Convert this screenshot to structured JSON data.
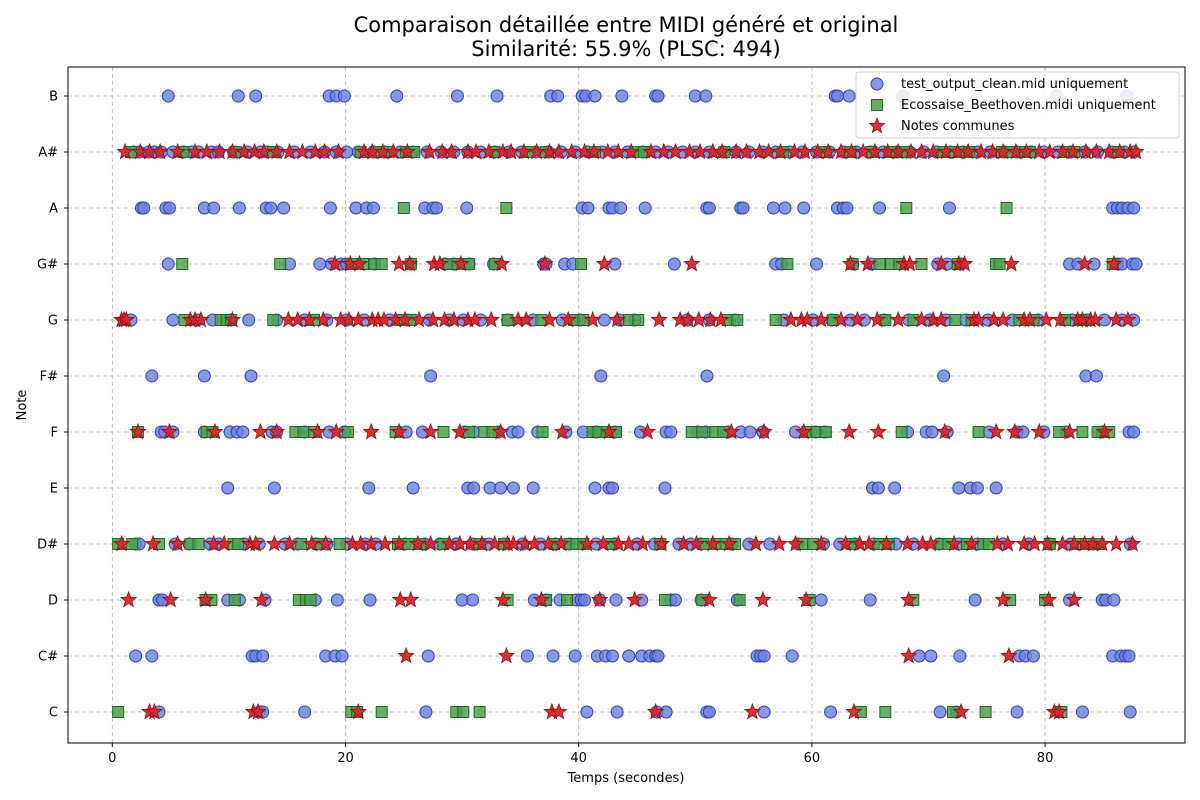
{
  "chart_data": {
    "type": "scatter",
    "title": "Comparaison détaillée entre MIDI généré et original",
    "subtitle": "Similarité: 55.9% (PLSC: 494)",
    "xlabel": "Temps (secondes)",
    "ylabel": "Note",
    "xlim": [
      -3.8,
      92
    ],
    "x_ticks": [
      0,
      20,
      40,
      60,
      80
    ],
    "y_categories": [
      "C",
      "C#",
      "D",
      "D#",
      "E",
      "F",
      "F#",
      "G",
      "G#",
      "A",
      "A#",
      "B"
    ],
    "grid": true,
    "legend_position": "top-right",
    "colors": {
      "test_only": "#6b7fe0",
      "test_only_edge": "#2f3fa8",
      "original_only": "#4ea04e",
      "original_only_edge": "#1f6b1f",
      "common": "#d8262c",
      "common_edge": "#8a1010"
    },
    "series": [
      {
        "name": "test_output_clean.mid uniquement",
        "marker": "circle",
        "points": {
          "B": [
            4.8,
            10.8,
            12.3,
            18.6,
            19.2,
            19.9,
            24.4,
            29.6,
            33,
            37.6,
            38.2,
            40.3,
            40.6,
            41.4,
            43.7,
            46.6,
            46.8,
            50,
            50.9,
            62,
            62.2,
            63.2,
            67.8,
            81,
            87
          ],
          "A#": [
            1.8,
            2.3,
            3.1,
            3.6,
            4.2,
            5.2,
            6.1,
            6.8,
            7.4,
            8.5,
            9.1,
            10.4,
            11.6,
            12.7,
            13.3,
            14.2,
            15.6,
            17,
            18.2,
            19.2,
            20.1,
            21.1,
            22.4,
            23.3,
            24.7,
            25.8,
            27,
            28.2,
            29.3,
            30.5,
            31.6,
            32.8,
            34,
            35.1,
            36.3,
            37.4,
            38.5,
            39.7,
            40.8,
            42,
            43.1,
            44.2,
            45.5,
            46.6,
            47.7,
            48.9,
            50,
            51.2,
            52.4,
            53.5,
            54.6,
            55.8,
            56.9,
            58.1,
            59.2,
            60.4,
            61.5,
            62.7,
            63.8,
            65,
            66.1,
            67.3,
            68.4,
            69.6,
            70.7,
            71.9,
            73,
            74.2,
            75.3,
            76.5,
            77.6,
            78.8,
            79.9,
            81.1,
            82.2,
            83.4,
            84.5,
            85.7,
            86.8,
            87.6
          ],
          "A": [
            2.5,
            2.7,
            4.6,
            4.9,
            7.9,
            8.7,
            10.9,
            13.2,
            13.6,
            14.7,
            18.7,
            20.9,
            21.8,
            22.4,
            26.8,
            27.5,
            27.8,
            30.4,
            40.3,
            40.8,
            42.6,
            42.9,
            43.6,
            45.7,
            51,
            51.2,
            53.9,
            54.1,
            56.7,
            57.7,
            59.3,
            62.2,
            62.7,
            63,
            65.8,
            71.8,
            85.8,
            86.2,
            86.6,
            87.1,
            87.6
          ],
          "G#": [
            4.8,
            15.2,
            17.8,
            18.8,
            19.6,
            20.1,
            22.5,
            25.6,
            28.5,
            29.3,
            30.6,
            32.7,
            37,
            37.2,
            38.8,
            39.5,
            43.1,
            48.2,
            56.9,
            57.4,
            60.4,
            63.5,
            65.1,
            70.8,
            71.6,
            72.8,
            82.1,
            82.8,
            84.2,
            86.2,
            86.6,
            87.5,
            87.8
          ],
          "G": [
            1.6,
            5.2,
            7.3,
            8.6,
            10.2,
            11.7,
            14.1,
            16.5,
            18.4,
            20.1,
            21.6,
            23.8,
            25.3,
            27.2,
            28.9,
            30.1,
            31.6,
            33.9,
            36.1,
            38.6,
            40.1,
            42.2,
            43.5,
            44.8,
            49.3,
            51.2,
            53.4,
            57.6,
            60.1,
            61.7,
            63.3,
            64.5,
            66.2,
            68.3,
            70.1,
            71.5,
            73.2,
            75.1,
            77.2,
            79.4,
            82.3,
            83.6,
            85.1,
            86.6,
            87.6
          ],
          "F#": [
            3.4,
            7.9,
            11.9,
            27.3,
            41.9,
            51,
            71.3,
            83.5,
            84.4
          ],
          "F": [
            4.2,
            4.5,
            5.2,
            7.9,
            10.1,
            10.7,
            11.2,
            13.7,
            14.1,
            16.5,
            18.6,
            19.9,
            25.2,
            26.6,
            30.2,
            31,
            33.1,
            34.3,
            34.8,
            36.5,
            38.9,
            40.4,
            41.5,
            43.1,
            45.3,
            47.5,
            47.9,
            50.2,
            50.9,
            52.8,
            53.9,
            54.7,
            55.8,
            58.6,
            60.3,
            61.1,
            68.2,
            69.8,
            70.3,
            71.6,
            75.2,
            77.6,
            78.1,
            79.9,
            81.8,
            84.9,
            87.2,
            87.6
          ],
          "E": [
            9.9,
            13.9,
            22,
            25.8,
            30.5,
            31,
            32.4,
            33.3,
            34.4,
            36.1,
            41.4,
            42.6,
            42.9,
            47.4,
            65.2,
            65.7,
            67.1,
            72.6,
            73.6,
            74.2,
            75.8
          ],
          "D#": [
            2,
            2.3,
            5.4,
            6.6,
            8.4,
            9.1,
            11.3,
            12.6,
            14.8,
            15.9,
            17.5,
            18.4,
            20.1,
            21.7,
            22.6,
            25.1,
            26.8,
            28.1,
            29.5,
            30.9,
            32.3,
            33.6,
            35.2,
            36.7,
            38,
            39.2,
            41.5,
            43.1,
            45,
            46.5,
            48.6,
            49.6,
            50.5,
            53.1,
            54.6,
            56.4,
            58.8,
            61,
            62.4,
            63.7,
            65.3,
            67.2,
            68.7,
            70.9,
            72.6,
            74.2,
            76.4,
            78.6,
            80.4,
            82.2,
            84.1,
            87.3
          ],
          "D": [
            4,
            4.3,
            9.9,
            10.9,
            13.1,
            17.4,
            19.3,
            22.1,
            30,
            30.9,
            36.2,
            37.2,
            38.4,
            39.8,
            40.2,
            40.5,
            41.8,
            43.2,
            45.4,
            47.9,
            48.3,
            50.5,
            53.6,
            60.8,
            65,
            74,
            82.1,
            84.9,
            85.2,
            85.9
          ],
          "C#": [
            2,
            3.4,
            12,
            12.3,
            12.9,
            18.3,
            19.1,
            19.7,
            27.1,
            35.6,
            37.8,
            39.7,
            41.6,
            42.3,
            42.9,
            44.3,
            45.4,
            46.1,
            46.6,
            46.8,
            55.3,
            55.6,
            55.9,
            58.3,
            69.2,
            70.2,
            72.7,
            77.8,
            78.3,
            79,
            85.8,
            86.5,
            86.9,
            87.2
          ],
          "C": [
            4,
            12.6,
            12.9,
            16.5,
            26.9,
            40.7,
            43.3,
            46.7,
            47.5,
            51,
            51.2,
            55.9,
            61.6,
            71,
            72.4,
            77.6,
            83.2,
            87.3
          ]
        }
      },
      {
        "name": "Ecossaise_Beethoven.midi uniquement",
        "marker": "square",
        "points": {
          "A#": [
            1.6,
            6.1,
            10.6,
            13.8,
            21.3,
            22.6,
            23.7,
            25.2,
            25.9,
            32.8,
            35.7,
            37.2,
            41.4,
            44.9,
            45.6,
            52.5,
            57.5,
            61.1,
            63.3,
            65.1,
            66.7,
            67.7,
            68.1,
            71.3,
            72.1,
            72.9,
            73.5,
            76.3,
            77.1,
            78.3,
            78.7,
            81.8,
            82.5,
            86.3
          ],
          "A": [
            25,
            33.8,
            68.1,
            76.7
          ],
          "G#": [
            6,
            14.4,
            20.5,
            21.5,
            22.5,
            23.1,
            25.6,
            28.8,
            29.6,
            30.6,
            32.8,
            40.2,
            57.9,
            63.5,
            65.8,
            66.8,
            67.5,
            69.4,
            72.5,
            75.8,
            76.1,
            85.8
          ],
          "G": [
            6.2,
            9.3,
            9.8,
            10.2,
            13.8,
            17.3,
            24.7,
            25.6,
            33.9,
            36.8,
            39.6,
            40.4,
            44.3,
            45.1,
            52.8,
            53.6,
            56.9,
            61.8,
            66.3,
            68.7,
            72.3,
            73.7,
            77.8,
            79,
            81.7,
            83.1
          ],
          "F": [
            2.2,
            8.1,
            8.6,
            15.7,
            16.4,
            17.3,
            20.2,
            24.3,
            28.4,
            30.6,
            31.9,
            32.6,
            36.9,
            41.2,
            41.7,
            42.4,
            43.2,
            49.7,
            50.6,
            51.7,
            52.4,
            59.6,
            60.4,
            61.2,
            67.7,
            74.3,
            81.2,
            83.2,
            84.5,
            85.5
          ],
          "D#": [
            0.5,
            1.7,
            4,
            6.7,
            7.4,
            10.4,
            10.8,
            16.2,
            17.7,
            19.5,
            24.5,
            25.4,
            26.4,
            28.4,
            31.5,
            33.6,
            37.9,
            39.2,
            39.8,
            40.4,
            42.8,
            47,
            50.7,
            51.8,
            52.6,
            53.4,
            59.3,
            60.1,
            63.4,
            65.8,
            66.6,
            71.1,
            71.7,
            73.3,
            74.7,
            75.2,
            80.4,
            82.8,
            83.5,
            84.6
          ],
          "D": [
            8,
            8.5,
            10.5,
            16,
            16.6,
            17,
            33.9,
            37.2,
            39,
            47.4,
            50.6,
            53.8,
            59.8,
            68.7,
            77,
            80
          ],
          "C": [
            0.5,
            20.5,
            21,
            23.1,
            29.5,
            30.1,
            31.5,
            64.2,
            66.3,
            72.1,
            74.9,
            81.4
          ]
        }
      },
      {
        "name": "Notes communes",
        "marker": "star",
        "points": {
          "A#": [
            1.1,
            2.4,
            3.2,
            4.1,
            5.6,
            7.1,
            8.1,
            9.2,
            10.3,
            11.3,
            12.2,
            13,
            14.1,
            15.2,
            16.3,
            17.4,
            18.2,
            19.4,
            21.6,
            22.3,
            23.2,
            24.1,
            25.3,
            27.2,
            28.3,
            29.1,
            30.5,
            31.2,
            32.3,
            33.5,
            34.2,
            35.3,
            36.4,
            37.5,
            38.3,
            39.4,
            40.5,
            41.3,
            42.5,
            43.4,
            44.5,
            46.2,
            47.3,
            48.3,
            49.5,
            50.4,
            51.5,
            52.3,
            53.5,
            54.4,
            55.5,
            56.3,
            57.3,
            58.5,
            59.4,
            60.5,
            61.4,
            62.5,
            63.4,
            64.4,
            65.4,
            66.5,
            67.4,
            68.5,
            69.4,
            70.4,
            71.5,
            72.5,
            73.4,
            74.5,
            75.5,
            76.4,
            77.5,
            78.4,
            79.5,
            80.4,
            81.5,
            82.4,
            83.5,
            84.4,
            85.5,
            86.4,
            87.3,
            87.8
          ],
          "G#": [
            19.1,
            20.4,
            21.2,
            24.6,
            25.5,
            27.6,
            28.1,
            29.9,
            33.4,
            37.1,
            42.2,
            49.7,
            63.3,
            64.8,
            67.9,
            68.4,
            71.1,
            72.6,
            73.1,
            77.1,
            83.4,
            85.9
          ],
          "G": [
            0.8,
            1,
            1.2,
            6.7,
            7.1,
            7.6,
            10.3,
            15.1,
            15.9,
            16.9,
            18.1,
            19.6,
            20.3,
            21.1,
            22.3,
            22.8,
            23.3,
            24.3,
            25.1,
            26.3,
            27.5,
            28.5,
            29.3,
            30.5,
            31.1,
            32.5,
            34.8,
            35.5,
            37.5,
            39.1,
            41.2,
            43.3,
            46.9,
            48.7,
            49.4,
            50.3,
            51.3,
            52.2,
            58.2,
            59.1,
            59.6,
            60.8,
            62.5,
            63.9,
            65.6,
            67.4,
            69.4,
            70.4,
            71.1,
            73.9,
            74.3,
            75.6,
            76.4,
            78.2,
            78.7,
            80.1,
            81.3,
            82.8,
            83.2,
            83.9,
            84.3,
            86.1,
            87.1
          ],
          "F": [
            2.2,
            4.9,
            8.8,
            12.7,
            14.1,
            17.6,
            19.2,
            22.2,
            24.6,
            27.3,
            29.8,
            33.3,
            38.6,
            42.6,
            45.9,
            53.1,
            55.9,
            59.3,
            63.2,
            65.7,
            71.4,
            75.8,
            77.4,
            79.5,
            82.1,
            85.1
          ],
          "D#": [
            0.8,
            3.5,
            5.6,
            8.7,
            9.6,
            11.8,
            12.3,
            13.9,
            15.2,
            17.1,
            18.3,
            20.6,
            21.3,
            22.2,
            23.4,
            24.6,
            26.2,
            27.3,
            28.9,
            29.8,
            30.7,
            31.7,
            32.8,
            33.9,
            34.4,
            35.4,
            36.2,
            37.4,
            38.5,
            40.7,
            42.1,
            43.4,
            44.3,
            45.5,
            47.1,
            49,
            50.1,
            51.5,
            52.9,
            55.2,
            57.2,
            58.6,
            60.8,
            62.9,
            64.1,
            64.9,
            66.4,
            68.2,
            69.5,
            70.2,
            72.2,
            73.7,
            75.9,
            76.8,
            78.2,
            79.1,
            80.2,
            81.5,
            82.5,
            83.4,
            84.1,
            84.9,
            86.1,
            87.5
          ],
          "D": [
            1.4,
            5,
            8,
            12.8,
            24.7,
            25.6,
            33.5,
            36.8,
            41.8,
            44.8,
            51.2,
            55.8,
            59.5,
            68.3,
            76.4,
            80.3,
            82.5
          ],
          "C#": [
            25.2,
            33.8,
            68.3,
            76.9
          ],
          "C": [
            3.2,
            3.6,
            12.1,
            12.5,
            21.1,
            37.7,
            38.3,
            46.6,
            54.9,
            63.6,
            72.8,
            80.8,
            81.2
          ]
        }
      }
    ]
  }
}
